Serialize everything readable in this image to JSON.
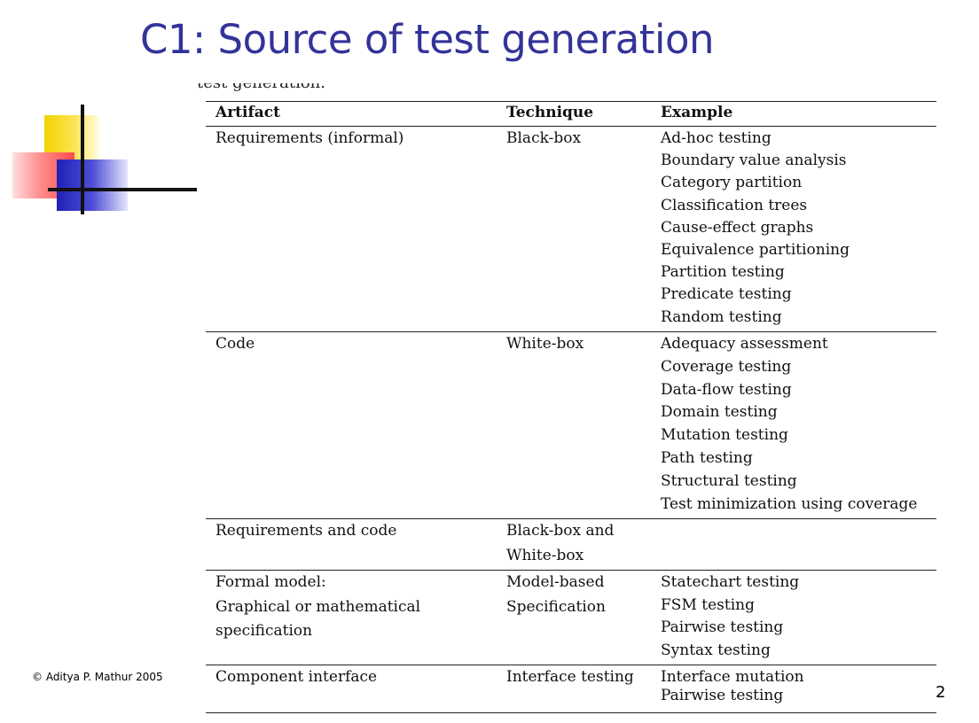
{
  "title": "C1: Source of test generation",
  "cut_caption": "test generation.",
  "table": {
    "headers": [
      "Artifact",
      "Technique",
      "Example"
    ],
    "rows": [
      {
        "artifact": [
          "Requirements (informal)"
        ],
        "technique": [
          "Black-box"
        ],
        "examples": [
          "Ad-hoc testing",
          "Boundary value analysis",
          "Category partition",
          "Classification trees",
          "Cause-effect graphs",
          "Equivalence partitioning",
          "Partition testing",
          "Predicate testing",
          "Random testing"
        ]
      },
      {
        "artifact": [
          "Code"
        ],
        "technique": [
          "White-box"
        ],
        "examples": [
          "Adequacy assessment",
          "Coverage testing",
          "Data-flow testing",
          "Domain testing",
          "Mutation testing",
          "Path testing",
          "Structural testing",
          "Test minimization using coverage"
        ]
      },
      {
        "artifact": [
          "Requirements and code"
        ],
        "technique": [
          "Black-box and",
          "White-box"
        ],
        "examples": []
      },
      {
        "artifact": [
          "Formal model:",
          "Graphical or mathematical",
          "specification"
        ],
        "technique": [
          "Model-based",
          "Specification"
        ],
        "examples": [
          "Statechart testing",
          "FSM testing",
          "Pairwise testing",
          "Syntax testing"
        ]
      },
      {
        "artifact": [
          "Component interface"
        ],
        "technique": [
          "Interface testing"
        ],
        "examples": [
          "Interface mutation",
          "Pairwise testing"
        ]
      }
    ]
  },
  "footer": "© Aditya P. Mathur 2005",
  "page_number": "2"
}
